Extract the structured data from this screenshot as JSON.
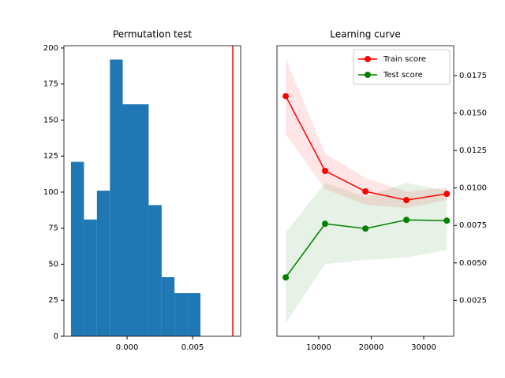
{
  "chart_data": [
    {
      "type": "histogram",
      "title": "Permutation test",
      "bins": [
        -0.00428,
        -0.00329,
        -0.0023,
        -0.00131,
        -0.00033,
        0.00066,
        0.00165,
        0.00264,
        0.00362,
        0.00461,
        0.0056
      ],
      "counts": [
        121,
        81,
        101,
        192,
        161,
        161,
        91,
        41,
        30,
        30
      ],
      "color": "#1f77b4",
      "vline": {
        "value": 0.00807,
        "color": "#ff0000"
      },
      "xlim": [
        -0.00482,
        0.00867
      ],
      "xticks": [
        {
          "value": 0,
          "label": "0.000"
        },
        {
          "value": 0.005,
          "label": "0.005"
        }
      ],
      "ylim": [
        0,
        201.6
      ],
      "yticks": [
        0,
        25,
        50,
        75,
        100,
        125,
        150,
        175,
        200
      ]
    },
    {
      "type": "line",
      "title": "Learning curve",
      "x": [
        3700,
        11200,
        18900,
        26700,
        34400
      ],
      "series": [
        {
          "name": "Train score",
          "color": "#ff0000",
          "values": [
            0.01613,
            0.01114,
            0.00977,
            0.00919,
            0.00961
          ],
          "lower": [
            0.0136,
            0.00993,
            0.00888,
            0.00866,
            0.00919
          ],
          "upper": [
            0.01866,
            0.0123,
            0.01066,
            0.00977,
            0.01003
          ]
        },
        {
          "name": "Test score",
          "color": "#008000",
          "values": [
            0.00403,
            0.00761,
            0.00729,
            0.00787,
            0.00782
          ],
          "lower": [
            0.00097,
            0.00492,
            0.00519,
            0.00535,
            0.00587
          ],
          "upper": [
            0.00703,
            0.01034,
            0.0094,
            0.01034,
            0.00982
          ]
        }
      ],
      "xlim": [
        2030,
        35714
      ],
      "xticks": [
        10000,
        20000,
        30000
      ],
      "ylim": [
        0.0001,
        0.0195
      ],
      "yticks": [
        0.0025,
        {
          "value": 0.005,
          "label": "0.0050"
        },
        0.0075,
        {
          "value": 0.01,
          "label": "0.0100"
        },
        0.0125,
        {
          "value": 0.015,
          "label": "0.0150"
        },
        0.0175
      ],
      "y_axis_side": "right",
      "legend": "upper right"
    }
  ]
}
